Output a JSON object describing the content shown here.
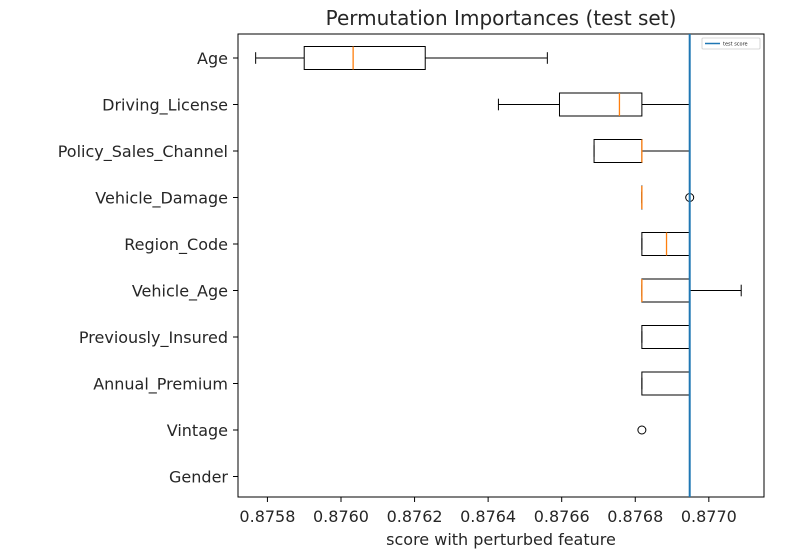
{
  "chart_data": {
    "type": "boxplot",
    "orientation": "horizontal",
    "title": "Permutation Importances (test set)",
    "xlabel": "score with perturbed feature",
    "ylabel": "",
    "xlim": [
      0.87572,
      0.87715
    ],
    "xticks": [
      0.8758,
      0.876,
      0.8762,
      0.8764,
      0.8766,
      0.8768,
      0.877
    ],
    "xtick_labels": [
      "0.8758",
      "0.8760",
      "0.8762",
      "0.8764",
      "0.8766",
      "0.8768",
      "0.8770"
    ],
    "reference_line": {
      "name": "test score",
      "value": 0.876948,
      "color": "#1f77b4"
    },
    "legend": {
      "entries": [
        "test score"
      ],
      "placement": "top-right"
    },
    "colors": {
      "box": "#000000",
      "median": "#ff7f0e",
      "flier": "#000000"
    },
    "series": [
      {
        "label": "Age",
        "whislo": 0.875768,
        "q1": 0.8759,
        "med": 0.876033,
        "q3": 0.876229,
        "whishi": 0.876561,
        "fliers": []
      },
      {
        "label": "Driving_License",
        "whislo": 0.876428,
        "q1": 0.876594,
        "med": 0.876757,
        "q3": 0.876818,
        "whishi": 0.876948,
        "fliers": []
      },
      {
        "label": "Policy_Sales_Channel",
        "whislo": 0.876688,
        "q1": 0.876688,
        "med": 0.876818,
        "q3": 0.876818,
        "whishi": 0.876948,
        "fliers": []
      },
      {
        "label": "Vehicle_Damage",
        "whislo": 0.876818,
        "q1": 0.876818,
        "med": 0.876818,
        "q3": 0.876818,
        "whishi": 0.876818,
        "fliers": [
          0.876948
        ]
      },
      {
        "label": "Region_Code",
        "whislo": 0.876818,
        "q1": 0.876818,
        "med": 0.876885,
        "q3": 0.876948,
        "whishi": 0.876948,
        "fliers": []
      },
      {
        "label": "Vehicle_Age",
        "whislo": 0.876818,
        "q1": 0.876818,
        "med": 0.876818,
        "q3": 0.876948,
        "whishi": 0.877088,
        "fliers": []
      },
      {
        "label": "Previously_Insured",
        "whislo": 0.876818,
        "q1": 0.876818,
        "med": 0.876948,
        "q3": 0.876948,
        "whishi": 0.876948,
        "fliers": []
      },
      {
        "label": "Annual_Premium",
        "whislo": 0.876818,
        "q1": 0.876818,
        "med": 0.876948,
        "q3": 0.876948,
        "whishi": 0.876948,
        "fliers": []
      },
      {
        "label": "Vintage",
        "whislo": 0.876948,
        "q1": 0.876948,
        "med": 0.876948,
        "q3": 0.876948,
        "whishi": 0.876948,
        "fliers": [
          0.876818
        ]
      },
      {
        "label": "Gender",
        "whislo": 0.876948,
        "q1": 0.876948,
        "med": 0.876948,
        "q3": 0.876948,
        "whishi": 0.876948,
        "fliers": []
      }
    ]
  }
}
